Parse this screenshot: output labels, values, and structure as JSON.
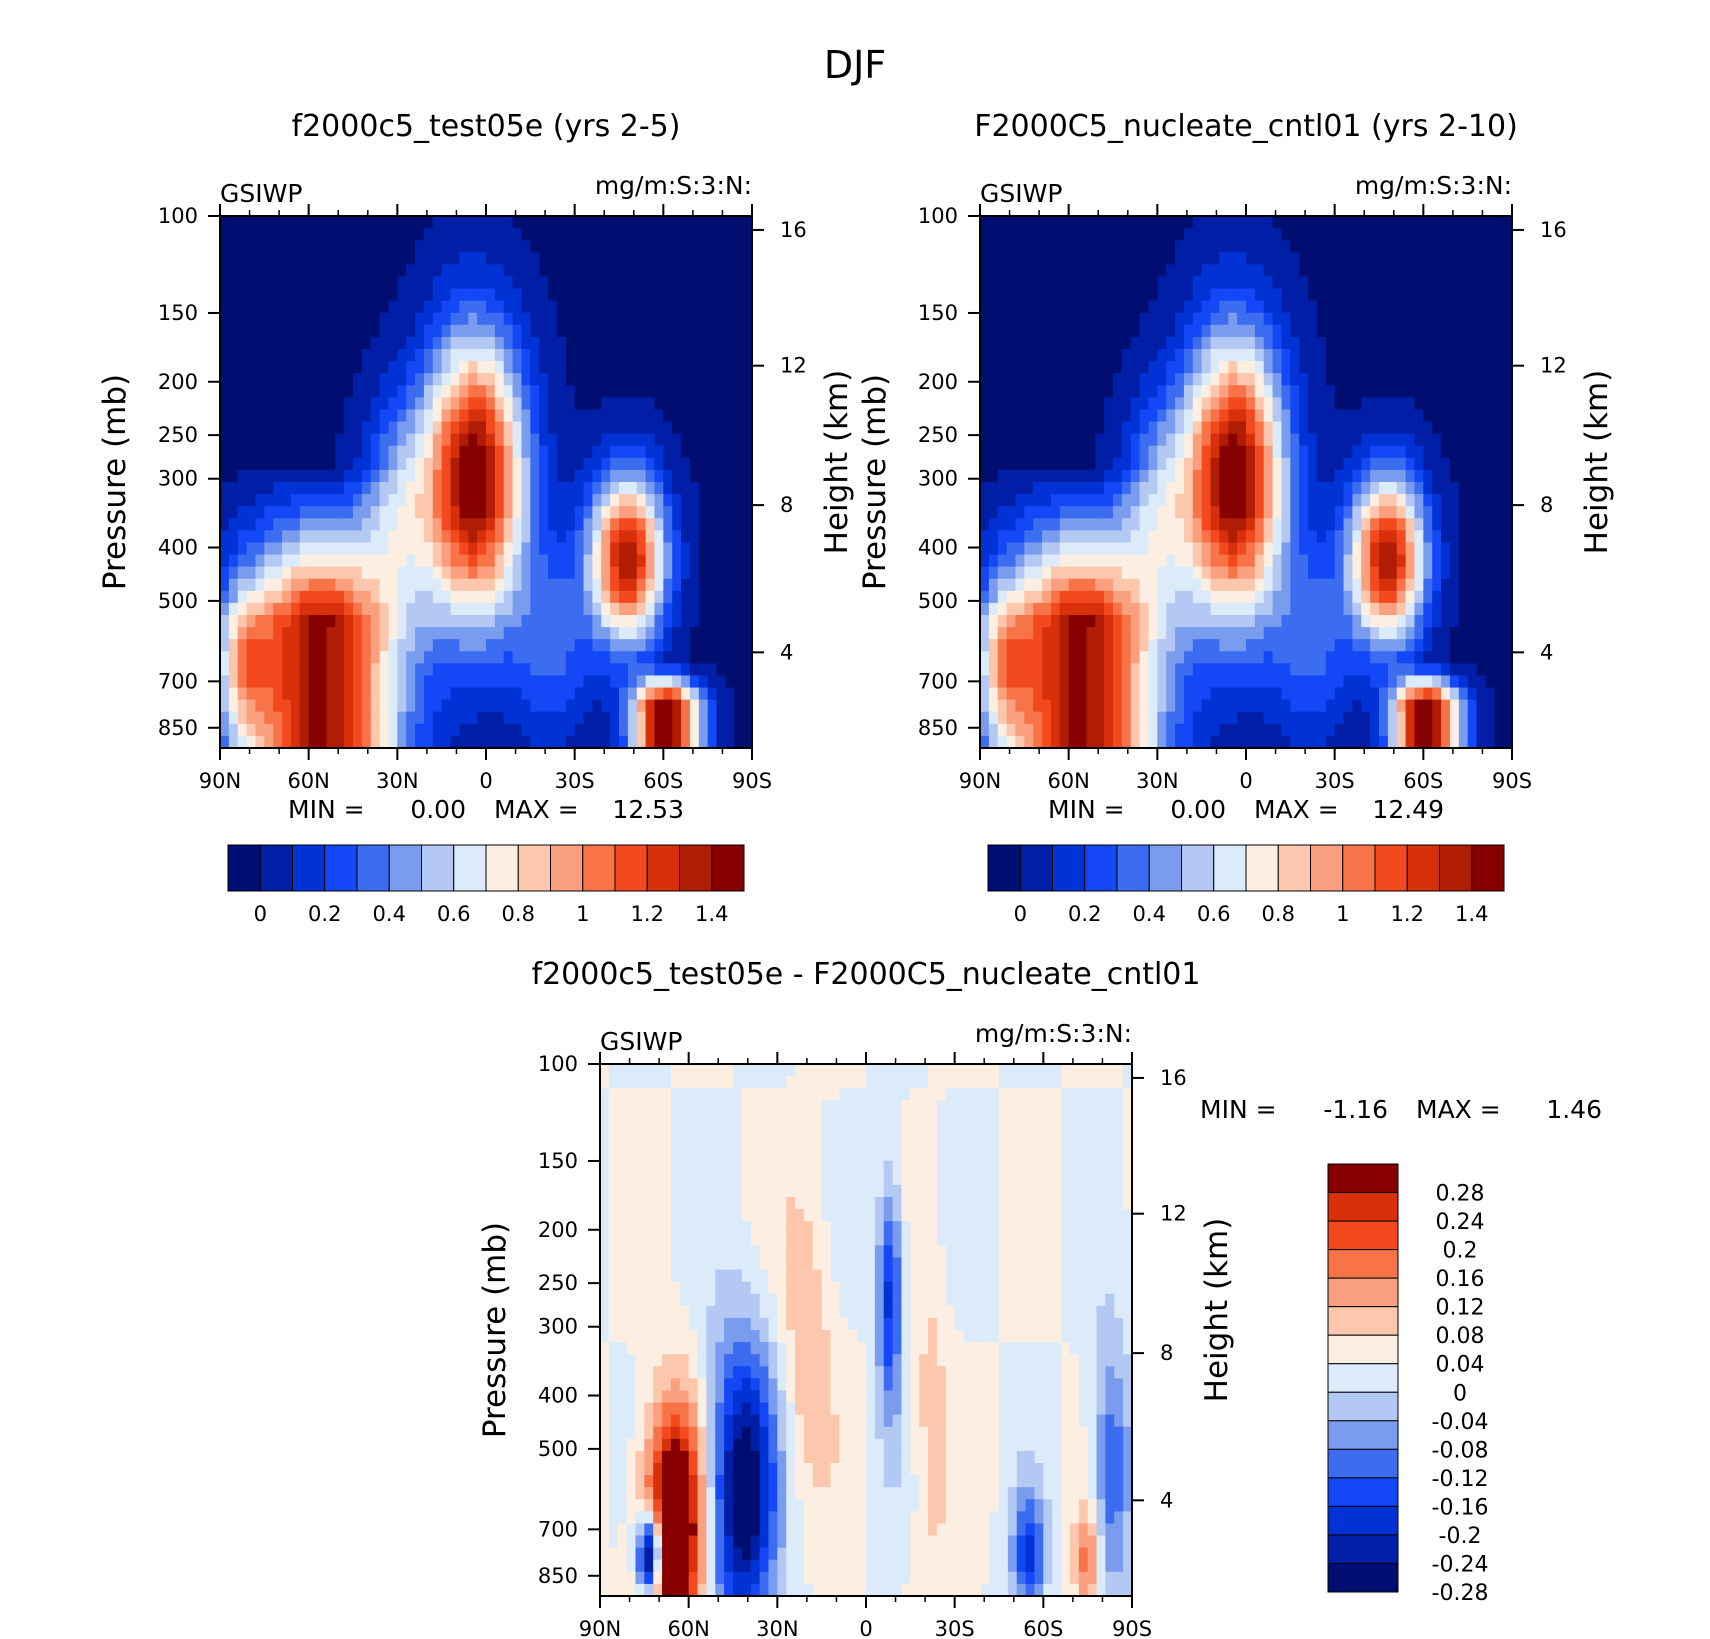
{
  "figure": {
    "title": "DJF"
  },
  "colors": {
    "abs_scale": [
      "#000e72",
      "#001fa6",
      "#0032d6",
      "#1447f5",
      "#3c6cf0",
      "#7a9cee",
      "#b3c8f2",
      "#dcebfa",
      "#fdeee2",
      "#fcc7ad",
      "#faa07e",
      "#f87448",
      "#f24a1e",
      "#d9300c",
      "#b01c04",
      "#860000"
    ],
    "diff_scale": [
      "#000e72",
      "#001fa6",
      "#0032d6",
      "#1447f5",
      "#3c6cf0",
      "#7a9cee",
      "#b3c8f2",
      "#dcebfa",
      "#fdeee2",
      "#fcc7ad",
      "#faa07e",
      "#f87448",
      "#f24a1e",
      "#d9300c",
      "#860000"
    ]
  },
  "chart_data": [
    {
      "type": "heatmap",
      "title": "f2000c5_test05e (yrs 2-5)",
      "variable": "GSIWP",
      "units": "mg/m:S:3:N:",
      "ylabel": "Pressure (mb)",
      "y2label": "Height (km)",
      "x_ticks": [
        "90N",
        "60N",
        "30N",
        "0",
        "30S",
        "60S",
        "90S"
      ],
      "y_ticks": [
        "100",
        "150",
        "200",
        "250",
        "300",
        "400",
        "500",
        "700",
        "850"
      ],
      "y2_ticks": [
        "16",
        "12",
        "8",
        "4"
      ],
      "min_label": "MIN =",
      "min_value": "0.00",
      "max_label": "MAX =",
      "max_value": "12.53",
      "colorbar_labels": [
        "0",
        "0.2",
        "0.4",
        "0.6",
        "0.8",
        "1",
        "1.2",
        "1.4"
      ],
      "features": [
        {
          "kind": "max",
          "lat": -62,
          "p": 700,
          "level": 15
        },
        {
          "kind": "max",
          "lat": 5,
          "p": 280,
          "level": 15
        },
        {
          "kind": "max",
          "lat": -48,
          "p": 400,
          "level": 15
        },
        {
          "kind": "max",
          "lat": 58,
          "p": 550,
          "level": 15
        }
      ]
    },
    {
      "type": "heatmap",
      "title": "F2000C5_nucleate_cntl01 (yrs 2-10)",
      "variable": "GSIWP",
      "units": "mg/m:S:3:N:",
      "ylabel": "Pressure (mb)",
      "y2label": "Height (km)",
      "x_ticks": [
        "90N",
        "60N",
        "30N",
        "0",
        "30S",
        "60S",
        "90S"
      ],
      "y_ticks": [
        "100",
        "150",
        "200",
        "250",
        "300",
        "400",
        "500",
        "700",
        "850"
      ],
      "y2_ticks": [
        "16",
        "12",
        "8",
        "4"
      ],
      "min_label": "MIN =",
      "min_value": "0.00",
      "max_label": "MAX =",
      "max_value": "12.49",
      "colorbar_labels": [
        "0",
        "0.2",
        "0.4",
        "0.6",
        "0.8",
        "1",
        "1.2",
        "1.4"
      ],
      "features": [
        {
          "kind": "max",
          "lat": -62,
          "p": 700,
          "level": 15
        },
        {
          "kind": "max",
          "lat": 5,
          "p": 280,
          "level": 15
        },
        {
          "kind": "max",
          "lat": -48,
          "p": 400,
          "level": 15
        },
        {
          "kind": "max",
          "lat": 58,
          "p": 550,
          "level": 15
        }
      ]
    },
    {
      "type": "heatmap",
      "title": "f2000c5_test05e - F2000C5_nucleate_cntl01",
      "variable": "GSIWP",
      "units": "mg/m:S:3:N:",
      "ylabel": "Pressure (mb)",
      "y2label": "Height (km)",
      "x_ticks": [
        "90N",
        "60N",
        "30N",
        "0",
        "30S",
        "60S",
        "90S"
      ],
      "y_ticks": [
        "100",
        "150",
        "200",
        "250",
        "300",
        "400",
        "500",
        "700",
        "850"
      ],
      "y2_ticks": [
        "16",
        "12",
        "8",
        "4"
      ],
      "min_label": "MIN =",
      "min_value": "-1.16",
      "max_label": "MAX =",
      "max_value": "1.46",
      "colorbar_labels": [
        "0.28",
        "0.24",
        "0.2",
        "0.16",
        "0.12",
        "0.08",
        "0.04",
        "0",
        "-0.04",
        "-0.08",
        "-0.12",
        "-0.16",
        "-0.2",
        "-0.24",
        "-0.28"
      ],
      "features": [
        {
          "kind": "max",
          "lat": 65,
          "p": 750,
          "level": 14
        },
        {
          "kind": "min",
          "lat": 73,
          "p": 780,
          "level": 0
        },
        {
          "kind": "min",
          "lat": 42,
          "p": 650,
          "level": 1
        },
        {
          "kind": "min",
          "lat": -8,
          "p": 250,
          "level": 3
        },
        {
          "kind": "max",
          "lat": 20,
          "p": 300,
          "level": 10
        }
      ]
    }
  ]
}
